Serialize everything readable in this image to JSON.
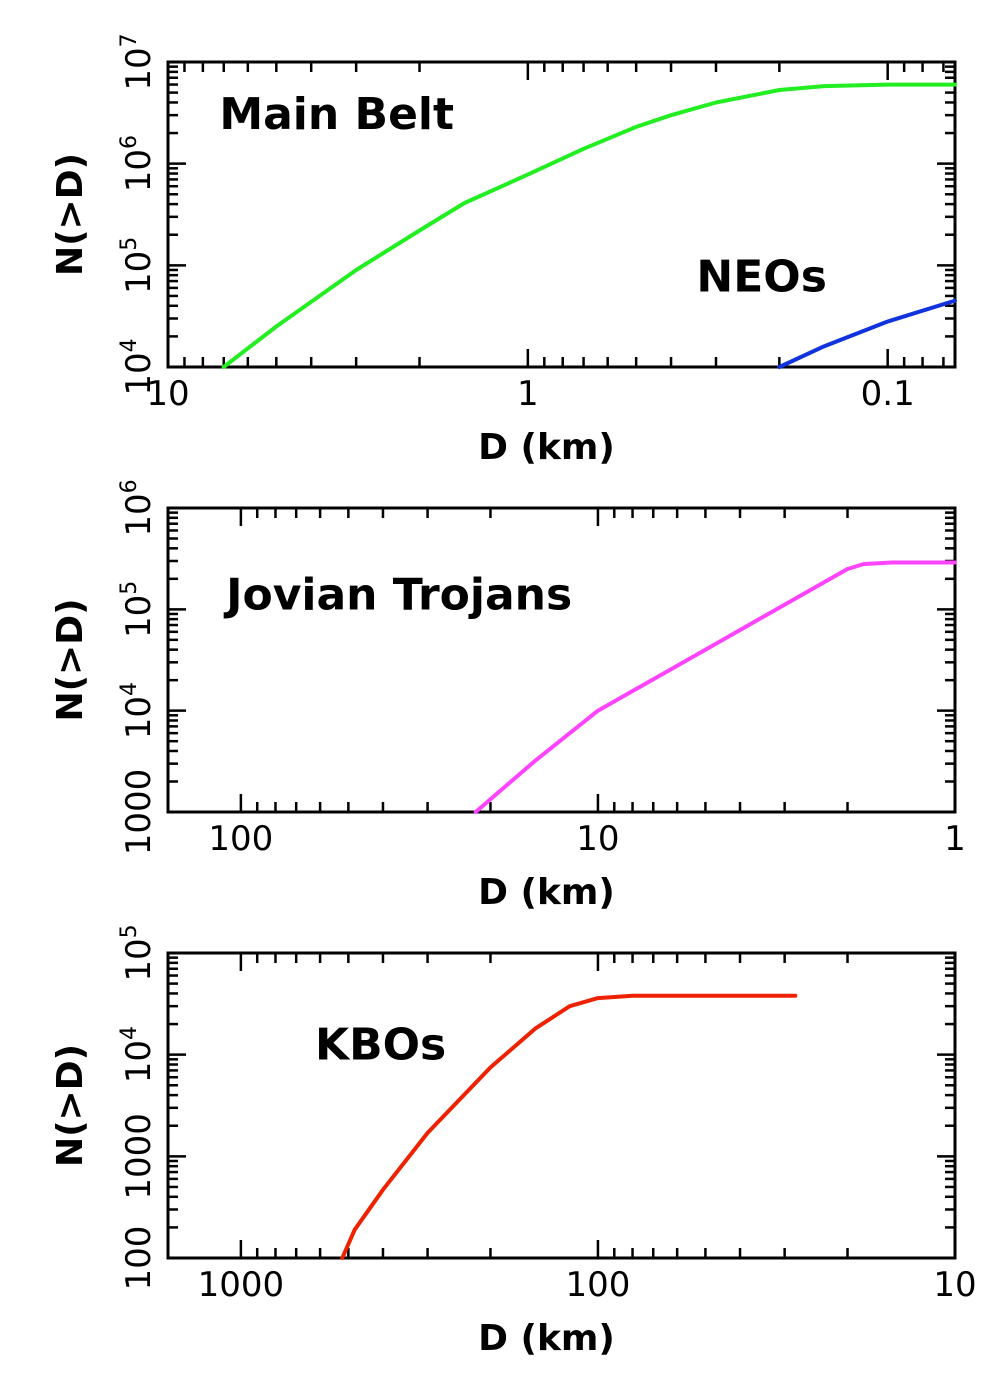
{
  "chart_data": [
    {
      "type": "line",
      "xlabel": "D (km)",
      "ylabel": "N(>D)",
      "x_scale": "log",
      "y_scale": "log",
      "x_reversed": true,
      "xlim": [
        10,
        0.065
      ],
      "ylim": [
        10000,
        10000000
      ],
      "x_ticks": [
        {
          "value": 10,
          "label": "10"
        },
        {
          "value": 1,
          "label": "1"
        },
        {
          "value": 0.1,
          "label": "0.1"
        }
      ],
      "y_ticks": [
        {
          "value": 10000,
          "base": "10",
          "exp": "4"
        },
        {
          "value": 100000,
          "base": "10",
          "exp": "5"
        },
        {
          "value": 1000000,
          "base": "10",
          "exp": "6"
        },
        {
          "value": 10000000,
          "base": "10",
          "exp": "7"
        }
      ],
      "annotations": [
        {
          "text": "Main Belt",
          "x": 7.2,
          "y": 2200000
        },
        {
          "text": "NEOs",
          "x": 0.34,
          "y": 55000
        }
      ],
      "series": [
        {
          "name": "Main Belt",
          "color": "#22ee22",
          "x": [
            7.0,
            5.0,
            3.0,
            2.0,
            1.5,
            1.0,
            0.7,
            0.5,
            0.4,
            0.3,
            0.2,
            0.15,
            0.1,
            0.065
          ],
          "y": [
            10000,
            25000,
            90000,
            220000,
            410000,
            780000,
            1400000,
            2300000,
            3000000,
            4000000,
            5300000,
            5800000,
            6000000,
            6000000
          ]
        },
        {
          "name": "NEOs",
          "color": "#1133dd",
          "x": [
            0.2,
            0.15,
            0.1,
            0.065
          ],
          "y": [
            10000,
            16000,
            28000,
            45000
          ]
        }
      ]
    },
    {
      "type": "line",
      "xlabel": "D (km)",
      "ylabel": "N(>D)",
      "x_scale": "log",
      "y_scale": "log",
      "x_reversed": true,
      "xlim": [
        160,
        1
      ],
      "ylim": [
        1000,
        1000000
      ],
      "x_ticks": [
        {
          "value": 100,
          "label": "100"
        },
        {
          "value": 10,
          "label": "10"
        },
        {
          "value": 1,
          "label": "1"
        }
      ],
      "y_ticks": [
        {
          "value": 1000,
          "base": "1000",
          "exp": ""
        },
        {
          "value": 10000,
          "base": "10",
          "exp": "4"
        },
        {
          "value": 100000,
          "base": "10",
          "exp": "5"
        },
        {
          "value": 1000000,
          "base": "10",
          "exp": "6"
        }
      ],
      "annotations": [
        {
          "text": "Jovian Trojans",
          "x": 110,
          "y": 100000
        }
      ],
      "series": [
        {
          "name": "Jovian Trojans",
          "color": "#ff44ff",
          "x": [
            22,
            15,
            10,
            5,
            2.5,
            2.0,
            1.8,
            1.5,
            1.2,
            1.0
          ],
          "y": [
            1000,
            3200,
            10000,
            40000,
            160000,
            250000,
            280000,
            290000,
            290000,
            290000
          ]
        }
      ]
    },
    {
      "type": "line",
      "xlabel": "D (km)",
      "ylabel": "N(>D)",
      "x_scale": "log",
      "y_scale": "log",
      "x_reversed": true,
      "xlim": [
        1600,
        10
      ],
      "ylim": [
        100,
        100000
      ],
      "x_ticks": [
        {
          "value": 1000,
          "label": "1000"
        },
        {
          "value": 100,
          "label": "100"
        },
        {
          "value": 10,
          "label": "10"
        }
      ],
      "y_ticks": [
        {
          "value": 100,
          "base": "100",
          "exp": ""
        },
        {
          "value": 1000,
          "base": "1000",
          "exp": ""
        },
        {
          "value": 10000,
          "base": "10",
          "exp": "4"
        },
        {
          "value": 100000,
          "base": "10",
          "exp": "5"
        }
      ],
      "annotations": [
        {
          "text": "KBOs",
          "x": 620,
          "y": 9000
        }
      ],
      "series": [
        {
          "name": "KBOs",
          "color": "#ee2200",
          "x": [
            520,
            480,
            400,
            300,
            200,
            150,
            120,
            100,
            80,
            60,
            28
          ],
          "y": [
            100,
            190,
            470,
            1700,
            7500,
            18000,
            30000,
            36000,
            38000,
            38000,
            38000
          ]
        }
      ]
    }
  ]
}
